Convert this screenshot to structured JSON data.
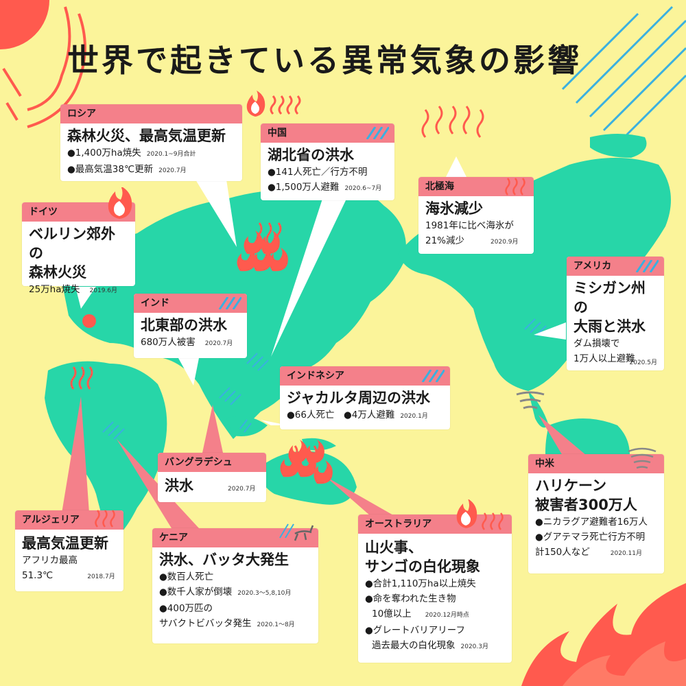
{
  "title": "世界で起きている異常気象の影響",
  "colors": {
    "background": "#fbf49a",
    "land": "#27d6a8",
    "header": "#f4808a",
    "card": "#ffffff",
    "fire": "#ff5a4e",
    "hatch": "#3ab0e0"
  },
  "cards": {
    "russia": {
      "header": "ロシア",
      "title": "森林火災、最高気温更新",
      "l1": "●1,400万ha焼失",
      "l1n": "2020.1~9月合計",
      "l2": "●最高気温38℃更新",
      "l2n": "2020.7月"
    },
    "china": {
      "header": "中国",
      "title": "湖北省の洪水",
      "l1": "●141人死亡／行方不明",
      "l2": "●1,500万人避難",
      "l2n": "2020.6~7月"
    },
    "arctic": {
      "header": "北極海",
      "title": "海氷減少",
      "l1": "1981年に比べ海氷が",
      "l2": "21%減少",
      "l2n": "2020.9月"
    },
    "germany": {
      "header": "ドイツ",
      "title1": "ベルリン郊外の",
      "title2": "森林火災",
      "l1": "25万ha焼失",
      "l1n": "2019.6月"
    },
    "india": {
      "header": "インド",
      "title": "北東部の洪水",
      "l1": "680万人被害",
      "l1n": "2020.7月"
    },
    "america": {
      "header": "アメリカ",
      "title1": "ミシガン州の",
      "title2": "大雨と洪水",
      "l1": "ダム損壊で",
      "l2": "1万人以上避難",
      "l3n": "2020.5月"
    },
    "indonesia": {
      "header": "インドネシア",
      "title": "ジャカルタ周辺の洪水",
      "l1": "●66人死亡　●4万人避難",
      "l1n": "2020.1月"
    },
    "bangladesh": {
      "header": "バングラデシュ",
      "title": "洪水",
      "n": "2020.7月"
    },
    "central": {
      "header": "中米",
      "title1": "ハリケーン",
      "title2": "被害者300万人",
      "l1": "●ニカラグア避難者16万人",
      "l2": "●グアテマラ死亡行方不明",
      "l3": "計150人など",
      "l3n": "2020.11月"
    },
    "algeria": {
      "header": "アルジェリア",
      "title": "最高気温更新",
      "l1": "アフリカ最高",
      "l2": "51.3℃",
      "l2n": "2018.7月"
    },
    "kenya": {
      "header": "ケニア",
      "title": "洪水、バッタ大発生",
      "l1": "●数百人死亡",
      "l2": "●数千人家が倒壊",
      "l2n": "2020.3～5,8,10月",
      "l3": "●400万匹の",
      "l4": "サバクトビバッタ発生",
      "l4n": "2020.1～8月"
    },
    "australia": {
      "header": "オーストラリア",
      "title1": "山火事、",
      "title2": "サンゴの白化現象",
      "l1": "●合計1,110万ha以上焼失",
      "l2": "●命を奪われた生き物",
      "l3": "10億以上",
      "l3n": "2020.12月時点",
      "l4": "●グレートバリアリーフ",
      "l5": "過去最大の白化現象",
      "l5n": "2020.3月"
    }
  }
}
